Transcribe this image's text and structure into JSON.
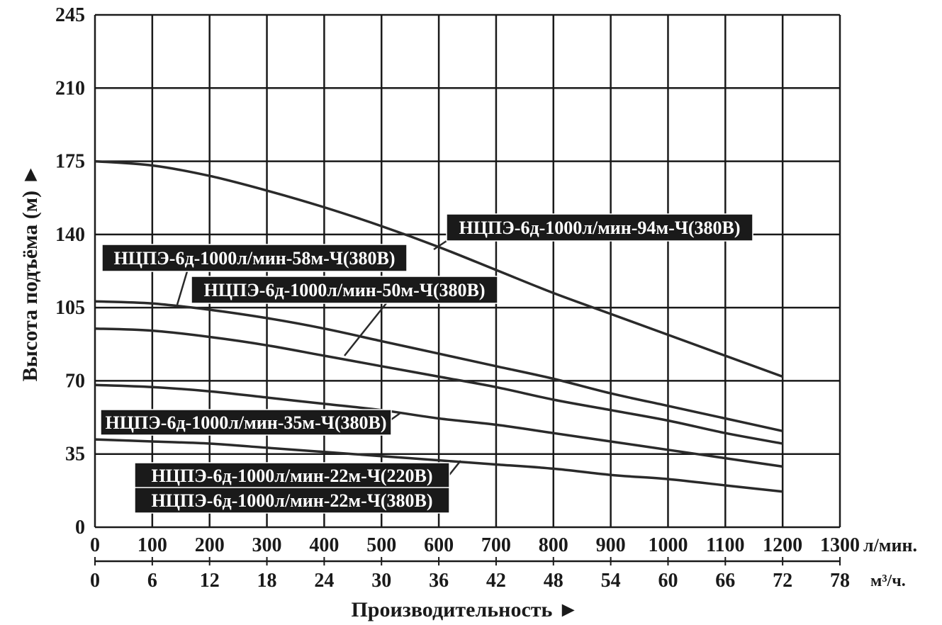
{
  "chart_data": {
    "type": "line",
    "xlabel": "Производительность ►",
    "ylabel": "Высота подъёма (м) ►",
    "x_unit_label": "л/мин.",
    "x2_unit_label": "м³/ч.",
    "xlim": [
      0,
      1300
    ],
    "ylim": [
      0,
      245
    ],
    "x_ticks": [
      "0",
      "100",
      "200",
      "300",
      "400",
      "500",
      "600",
      "700",
      "800",
      "900",
      "1000",
      "1100",
      "1200",
      "1300"
    ],
    "x2_ticks": [
      "0",
      "6",
      "12",
      "18",
      "24",
      "30",
      "36",
      "42",
      "48",
      "54",
      "60",
      "66",
      "72",
      "78"
    ],
    "y_ticks": [
      "0",
      "35",
      "70",
      "105",
      "140",
      "175",
      "210",
      "245"
    ],
    "grid": true,
    "series": [
      {
        "name": "НЦПЭ-6д-1000л/мин-94м-Ч(380В)",
        "x": [
          0,
          100,
          200,
          300,
          400,
          500,
          600,
          700,
          800,
          900,
          1000,
          1100,
          1200
        ],
        "y": [
          175,
          173,
          168,
          161,
          153,
          144,
          134,
          123,
          112,
          102,
          92,
          82,
          72
        ]
      },
      {
        "name": "НЦПЭ-6д-1000л/мин-58м-Ч(380В)",
        "x": [
          0,
          100,
          200,
          300,
          400,
          500,
          600,
          700,
          800,
          900,
          1000,
          1100,
          1200
        ],
        "y": [
          108,
          107,
          104,
          100,
          95,
          89,
          83,
          77,
          71,
          64,
          58,
          52,
          46
        ]
      },
      {
        "name": "НЦПЭ-6д-1000л/мин-50м-Ч(380В)",
        "x": [
          0,
          100,
          200,
          300,
          400,
          500,
          600,
          700,
          800,
          900,
          1000,
          1100,
          1200
        ],
        "y": [
          95,
          94,
          91,
          87,
          82,
          77,
          72,
          67,
          61,
          56,
          51,
          45,
          40
        ]
      },
      {
        "name": "НЦПЭ-6д-1000л/мин-35м-Ч(380В)",
        "x": [
          0,
          100,
          200,
          300,
          400,
          500,
          600,
          700,
          800,
          900,
          1000,
          1100,
          1200
        ],
        "y": [
          68,
          67,
          65,
          62,
          59,
          56,
          52,
          49,
          45,
          41,
          37,
          33,
          29
        ]
      },
      {
        "name": "НЦПЭ-6д-1000л/мин-22м-Ч(220В)",
        "x": [
          0,
          100,
          200,
          300,
          400,
          500,
          600,
          700,
          800,
          900,
          1000,
          1100,
          1200
        ],
        "y": [
          42,
          41,
          40,
          38,
          36,
          34,
          32,
          30,
          28,
          25,
          23,
          20,
          17
        ]
      }
    ],
    "annotations": [
      {
        "id": "lbl94",
        "text": "НЦПЭ-6д-1000л/мин-94м-Ч(380В)"
      },
      {
        "id": "lbl58",
        "text": "НЦПЭ-6д-1000л/мин-58м-Ч(380В)"
      },
      {
        "id": "lbl50",
        "text": "НЦПЭ-6д-1000л/мин-50м-Ч(380В)"
      },
      {
        "id": "lbl35",
        "text": "НЦПЭ-6д-1000л/мин-35м-Ч(380В)"
      },
      {
        "id": "lbl22a",
        "text": "НЦПЭ-6д-1000л/мин-22м-Ч(220В)"
      },
      {
        "id": "lbl22b",
        "text": "НЦПЭ-6д-1000л/мин-22м-Ч(380В)"
      }
    ],
    "colors": {
      "line": "#2a2a2a",
      "grid": "#1a1a1a",
      "label_bg": "#1a1a1a",
      "label_text": "#ffffff"
    }
  }
}
